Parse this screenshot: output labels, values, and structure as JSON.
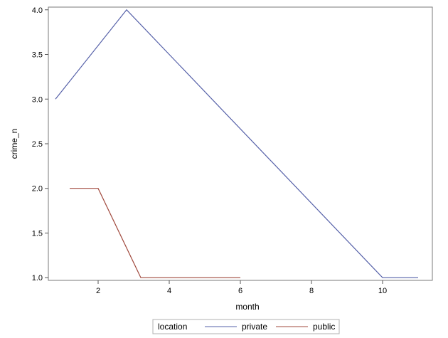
{
  "chart_data": {
    "type": "line",
    "title": "",
    "xlabel": "month",
    "ylabel": "crime_n",
    "xlim": [
      0.6,
      11.4
    ],
    "ylim": [
      0.97,
      4.03
    ],
    "x_ticks": [
      2,
      4,
      6,
      8,
      10
    ],
    "y_ticks": [
      1.0,
      1.5,
      2.0,
      2.5,
      3.0,
      3.5,
      4.0
    ],
    "x_tick_labels": [
      "2",
      "4",
      "6",
      "8",
      "10"
    ],
    "y_tick_labels": [
      "1.0",
      "1.5",
      "2.0",
      "2.5",
      "3.0",
      "3.5",
      "4.0"
    ],
    "grid": false,
    "legend": {
      "title": "location",
      "placement": "bottom-center",
      "entries": [
        "private",
        "public"
      ]
    },
    "series": [
      {
        "name": "private",
        "color": "#5560a8",
        "points": [
          [
            0.8,
            3.0
          ],
          [
            2.8,
            4.0
          ],
          [
            10.0,
            1.0
          ],
          [
            11.0,
            1.0
          ]
        ]
      },
      {
        "name": "public",
        "color": "#a0483c",
        "points": [
          [
            1.2,
            2.0
          ],
          [
            2.0,
            2.0
          ],
          [
            3.2,
            1.0
          ],
          [
            6.0,
            1.0
          ]
        ]
      }
    ]
  }
}
